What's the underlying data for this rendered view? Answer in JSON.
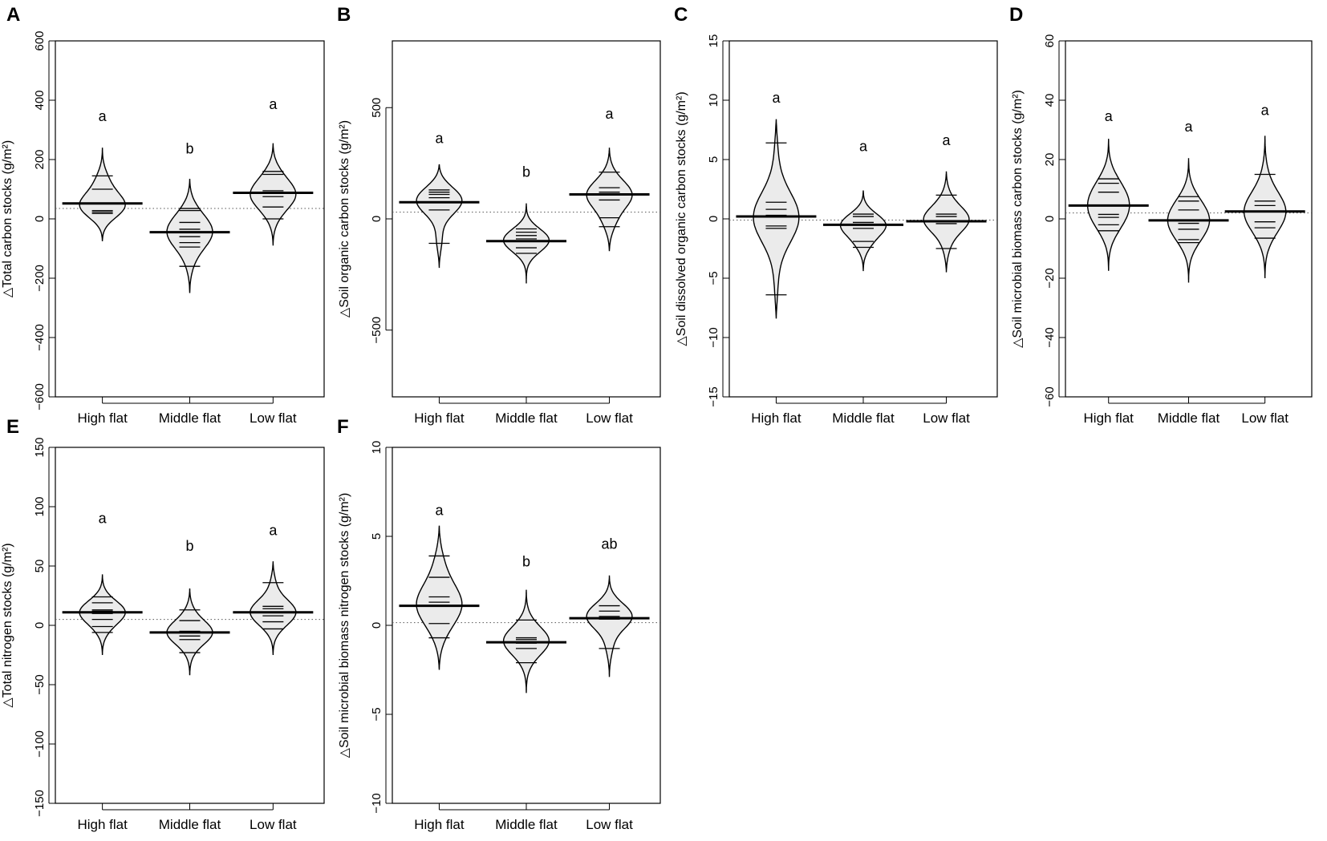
{
  "figure": {
    "category_labels": [
      "High flat",
      "Middle flat",
      "Low flat"
    ]
  },
  "chart_data": [
    {
      "panel": "A",
      "type": "beanplot",
      "ylabel": "△Total carbon stocks (g/m²)",
      "ylim": [
        -600,
        600
      ],
      "yticks": [
        -600,
        -400,
        -200,
        0,
        200,
        400,
        600
      ],
      "reference_line": 35,
      "categories": [
        "High flat",
        "Middle flat",
        "Low flat"
      ],
      "series": [
        {
          "name": "High flat",
          "mean": 52,
          "density_range": [
            -75,
            240
          ],
          "bean_peak": 45,
          "letter": "a",
          "letter_y": 330,
          "observations": [
            145,
            100,
            28,
            23,
            18
          ]
        },
        {
          "name": "Middle flat",
          "mean": -45,
          "density_range": [
            -250,
            135
          ],
          "bean_peak": -35,
          "letter": "b",
          "letter_y": 220,
          "observations": [
            35,
            28,
            -12,
            -35,
            -60,
            -80,
            -95,
            -160
          ]
        },
        {
          "name": "Low flat",
          "mean": 88,
          "density_range": [
            -90,
            255
          ],
          "bean_peak": 80,
          "letter": "a",
          "letter_y": 370,
          "observations": [
            160,
            150,
            95,
            75,
            40,
            0
          ]
        }
      ]
    },
    {
      "panel": "B",
      "type": "beanplot",
      "ylabel": "△Soil organic carbon stocks (g/m²)",
      "ylim": [
        -800,
        800
      ],
      "yticks": [
        -500,
        0,
        500
      ],
      "reference_line": 30,
      "categories": [
        "High flat",
        "Middle flat",
        "Low flat"
      ],
      "series": [
        {
          "name": "High flat",
          "mean": 75,
          "density_range": [
            -220,
            245
          ],
          "bean_peak": 90,
          "letter": "a",
          "letter_y": 340,
          "observations": [
            130,
            120,
            110,
            95,
            40,
            -110
          ]
        },
        {
          "name": "Middle flat",
          "mean": -100,
          "density_range": [
            -290,
            70
          ],
          "bean_peak": -100,
          "letter": "b",
          "letter_y": 190,
          "observations": [
            -45,
            -60,
            -75,
            -90,
            -130,
            -155
          ]
        },
        {
          "name": "Low flat",
          "mean": 110,
          "density_range": [
            -145,
            320
          ],
          "bean_peak": 110,
          "letter": "a",
          "letter_y": 450,
          "observations": [
            210,
            140,
            120,
            85,
            5,
            -35
          ]
        }
      ]
    },
    {
      "panel": "C",
      "type": "beanplot",
      "ylabel": "△Soil dissolved organic carbon stocks (g/m²)",
      "ylim": [
        -15,
        15
      ],
      "yticks": [
        -15,
        -10,
        -5,
        0,
        5,
        10,
        15
      ],
      "reference_line": -0.1,
      "categories": [
        "High flat",
        "Middle flat",
        "Low flat"
      ],
      "series": [
        {
          "name": "High flat",
          "mean": 0.2,
          "density_range": [
            -8.4,
            8.4
          ],
          "bean_peak": 0,
          "letter": "a",
          "letter_y": 9.8,
          "observations": [
            6.4,
            1.4,
            0.8,
            0.3,
            -0.6,
            -0.8,
            -6.4
          ]
        },
        {
          "name": "Middle flat",
          "mean": -0.5,
          "density_range": [
            -4.4,
            2.4
          ],
          "bean_peak": -0.6,
          "letter": "a",
          "letter_y": 5.7,
          "observations": [
            0.4,
            0.2,
            -0.3,
            -0.8,
            -1.9,
            -2.4
          ]
        },
        {
          "name": "Low flat",
          "mean": -0.2,
          "density_range": [
            -4.5,
            4.0
          ],
          "bean_peak": -0.1,
          "letter": "a",
          "letter_y": 6.2,
          "observations": [
            2.0,
            0.4,
            0.2,
            -0.4,
            -2.5
          ]
        }
      ]
    },
    {
      "panel": "D",
      "type": "beanplot",
      "ylabel": "△Soil microbial biomass carbon stocks (g/m²)",
      "ylim": [
        -60,
        60
      ],
      "yticks": [
        -60,
        -40,
        -20,
        0,
        20,
        40,
        60
      ],
      "reference_line": 2,
      "categories": [
        "High flat",
        "Middle flat",
        "Low flat"
      ],
      "series": [
        {
          "name": "High flat",
          "mean": 4.5,
          "density_range": [
            -17.5,
            27
          ],
          "bean_peak": 6,
          "letter": "a",
          "letter_y": 33,
          "observations": [
            13.5,
            12,
            9,
            1.5,
            0.5,
            -2,
            -4
          ]
        },
        {
          "name": "Middle flat",
          "mean": -0.5,
          "density_range": [
            -21.5,
            20.5
          ],
          "bean_peak": 0,
          "letter": "a",
          "letter_y": 29.5,
          "observations": [
            7.5,
            6,
            3,
            -1.5,
            -3.5,
            -7,
            -8
          ]
        },
        {
          "name": "Low flat",
          "mean": 2.5,
          "density_range": [
            -20,
            28
          ],
          "bean_peak": 3,
          "letter": "a",
          "letter_y": 35,
          "observations": [
            15,
            6,
            4.5,
            2.5,
            -1,
            -3,
            -6.5
          ]
        }
      ]
    },
    {
      "panel": "E",
      "type": "beanplot",
      "ylabel": "△Total nitrogen stocks (g/m²)",
      "ylim": [
        -150,
        150
      ],
      "yticks": [
        -150,
        -100,
        -50,
        0,
        50,
        100,
        150
      ],
      "reference_line": 5,
      "categories": [
        "High flat",
        "Middle flat",
        "Low flat"
      ],
      "series": [
        {
          "name": "High flat",
          "mean": 11,
          "density_range": [
            -25,
            43
          ],
          "bean_peak": 12,
          "letter": "a",
          "letter_y": 86,
          "observations": [
            24,
            19,
            13,
            12,
            10,
            5,
            -1,
            -6
          ]
        },
        {
          "name": "Middle flat",
          "mean": -6,
          "density_range": [
            -42,
            31
          ],
          "bean_peak": -5,
          "letter": "b",
          "letter_y": 63,
          "observations": [
            13,
            4,
            -5,
            -6,
            -9,
            -12,
            -23
          ]
        },
        {
          "name": "Low flat",
          "mean": 11,
          "density_range": [
            -25,
            54
          ],
          "bean_peak": 12,
          "letter": "a",
          "letter_y": 76,
          "observations": [
            36,
            16,
            14,
            8,
            3,
            -3
          ]
        }
      ]
    },
    {
      "panel": "F",
      "type": "beanplot",
      "ylabel": "△Soil microbial biomass nitrogen stocks (g/m²)",
      "ylim": [
        -10,
        10
      ],
      "yticks": [
        -10,
        -5,
        0,
        5,
        10
      ],
      "reference_line": 0.15,
      "categories": [
        "High flat",
        "Middle flat",
        "Low flat"
      ],
      "series": [
        {
          "name": "High flat",
          "mean": 1.1,
          "density_range": [
            -2.5,
            5.6
          ],
          "bean_peak": 1.0,
          "letter": "a",
          "letter_y": 6.2,
          "observations": [
            3.9,
            2.7,
            1.6,
            1.3,
            0.1,
            -0.7
          ]
        },
        {
          "name": "Middle flat",
          "mean": -0.95,
          "density_range": [
            -3.8,
            2.0
          ],
          "bean_peak": -0.7,
          "letter": "b",
          "letter_y": 3.3,
          "observations": [
            0.3,
            -0.7,
            -0.8,
            -1.0,
            -1.3,
            -2.1
          ]
        },
        {
          "name": "Low flat",
          "mean": 0.4,
          "density_range": [
            -2.9,
            2.8
          ],
          "bean_peak": 0.6,
          "letter": "ab",
          "letter_y": 4.3,
          "observations": [
            1.1,
            0.8,
            0.5,
            0.35,
            -1.3
          ]
        }
      ]
    }
  ]
}
